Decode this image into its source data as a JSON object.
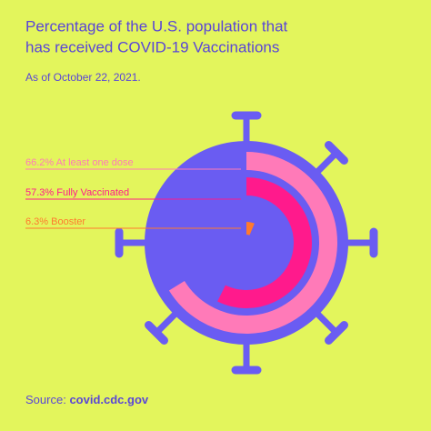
{
  "chart_data": {
    "type": "radial_bar",
    "title": [
      "Percentage of the U.S. population that",
      "has received COVID-19 Vaccinations"
    ],
    "subtitle": "As of October 22, 2021.",
    "categories": [
      "At least one dose",
      "Fully Vaccinated",
      "Booster"
    ],
    "values": [
      66.2,
      57.3,
      6.3
    ],
    "value_labels": [
      "66.2%",
      "57.3%",
      "6.3%"
    ],
    "colors": [
      "#ff7ab8",
      "#ff1a8c",
      "#ff7a2e"
    ],
    "rlim": [
      0,
      100
    ],
    "source_label": "Source:",
    "source": "covid.cdc.gov"
  }
}
